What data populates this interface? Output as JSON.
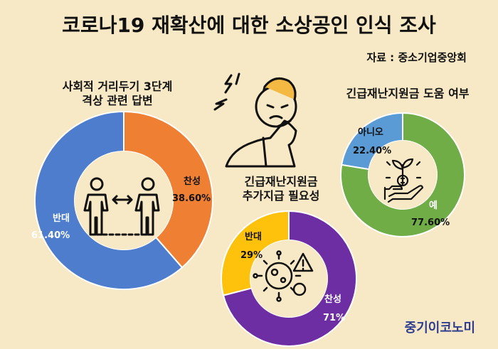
{
  "title": "코로나19 재확산에 대한 소상공인 인식 조사",
  "source": "자료 : 중소기업중앙회",
  "brand": "중기이코노미",
  "colors": {
    "background": "#f8e9c6",
    "blue": "#4d7dcc",
    "orange": "#ef7f32",
    "purple": "#6e2ea3",
    "yellow": "#fec10c",
    "green": "#70ad47",
    "lightblue": "#5a9bd5"
  },
  "icons": {
    "chart1": "social-distancing-icon",
    "figure": "stressed-person-icon",
    "chart2": "virus-warning-icon",
    "chart3": "money-plant-hand-icon"
  },
  "chart_data": [
    {
      "type": "pie",
      "title_lines": [
        "사회적 거리두기 3단계",
        "격상 관련 답변"
      ],
      "categories": [
        "반대",
        "찬성"
      ],
      "values": [
        61.4,
        38.6
      ],
      "value_labels": [
        "61.40%",
        "38.60%"
      ],
      "colors": [
        "#4d7dcc",
        "#ef7f32"
      ]
    },
    {
      "type": "pie",
      "title_lines": [
        "긴급재난지원금",
        "추가지급 필요성"
      ],
      "categories": [
        "반대",
        "찬성"
      ],
      "values": [
        29,
        71
      ],
      "value_labels": [
        "29%",
        "71%"
      ],
      "colors": [
        "#fec10c",
        "#6e2ea3"
      ]
    },
    {
      "type": "pie",
      "title_lines": [
        "긴급재난지원금 도움 여부"
      ],
      "categories": [
        "아니오",
        "예"
      ],
      "values": [
        22.4,
        77.6
      ],
      "value_labels": [
        "22.40%",
        "77.60%"
      ],
      "colors": [
        "#5a9bd5",
        "#70ad47"
      ]
    }
  ]
}
